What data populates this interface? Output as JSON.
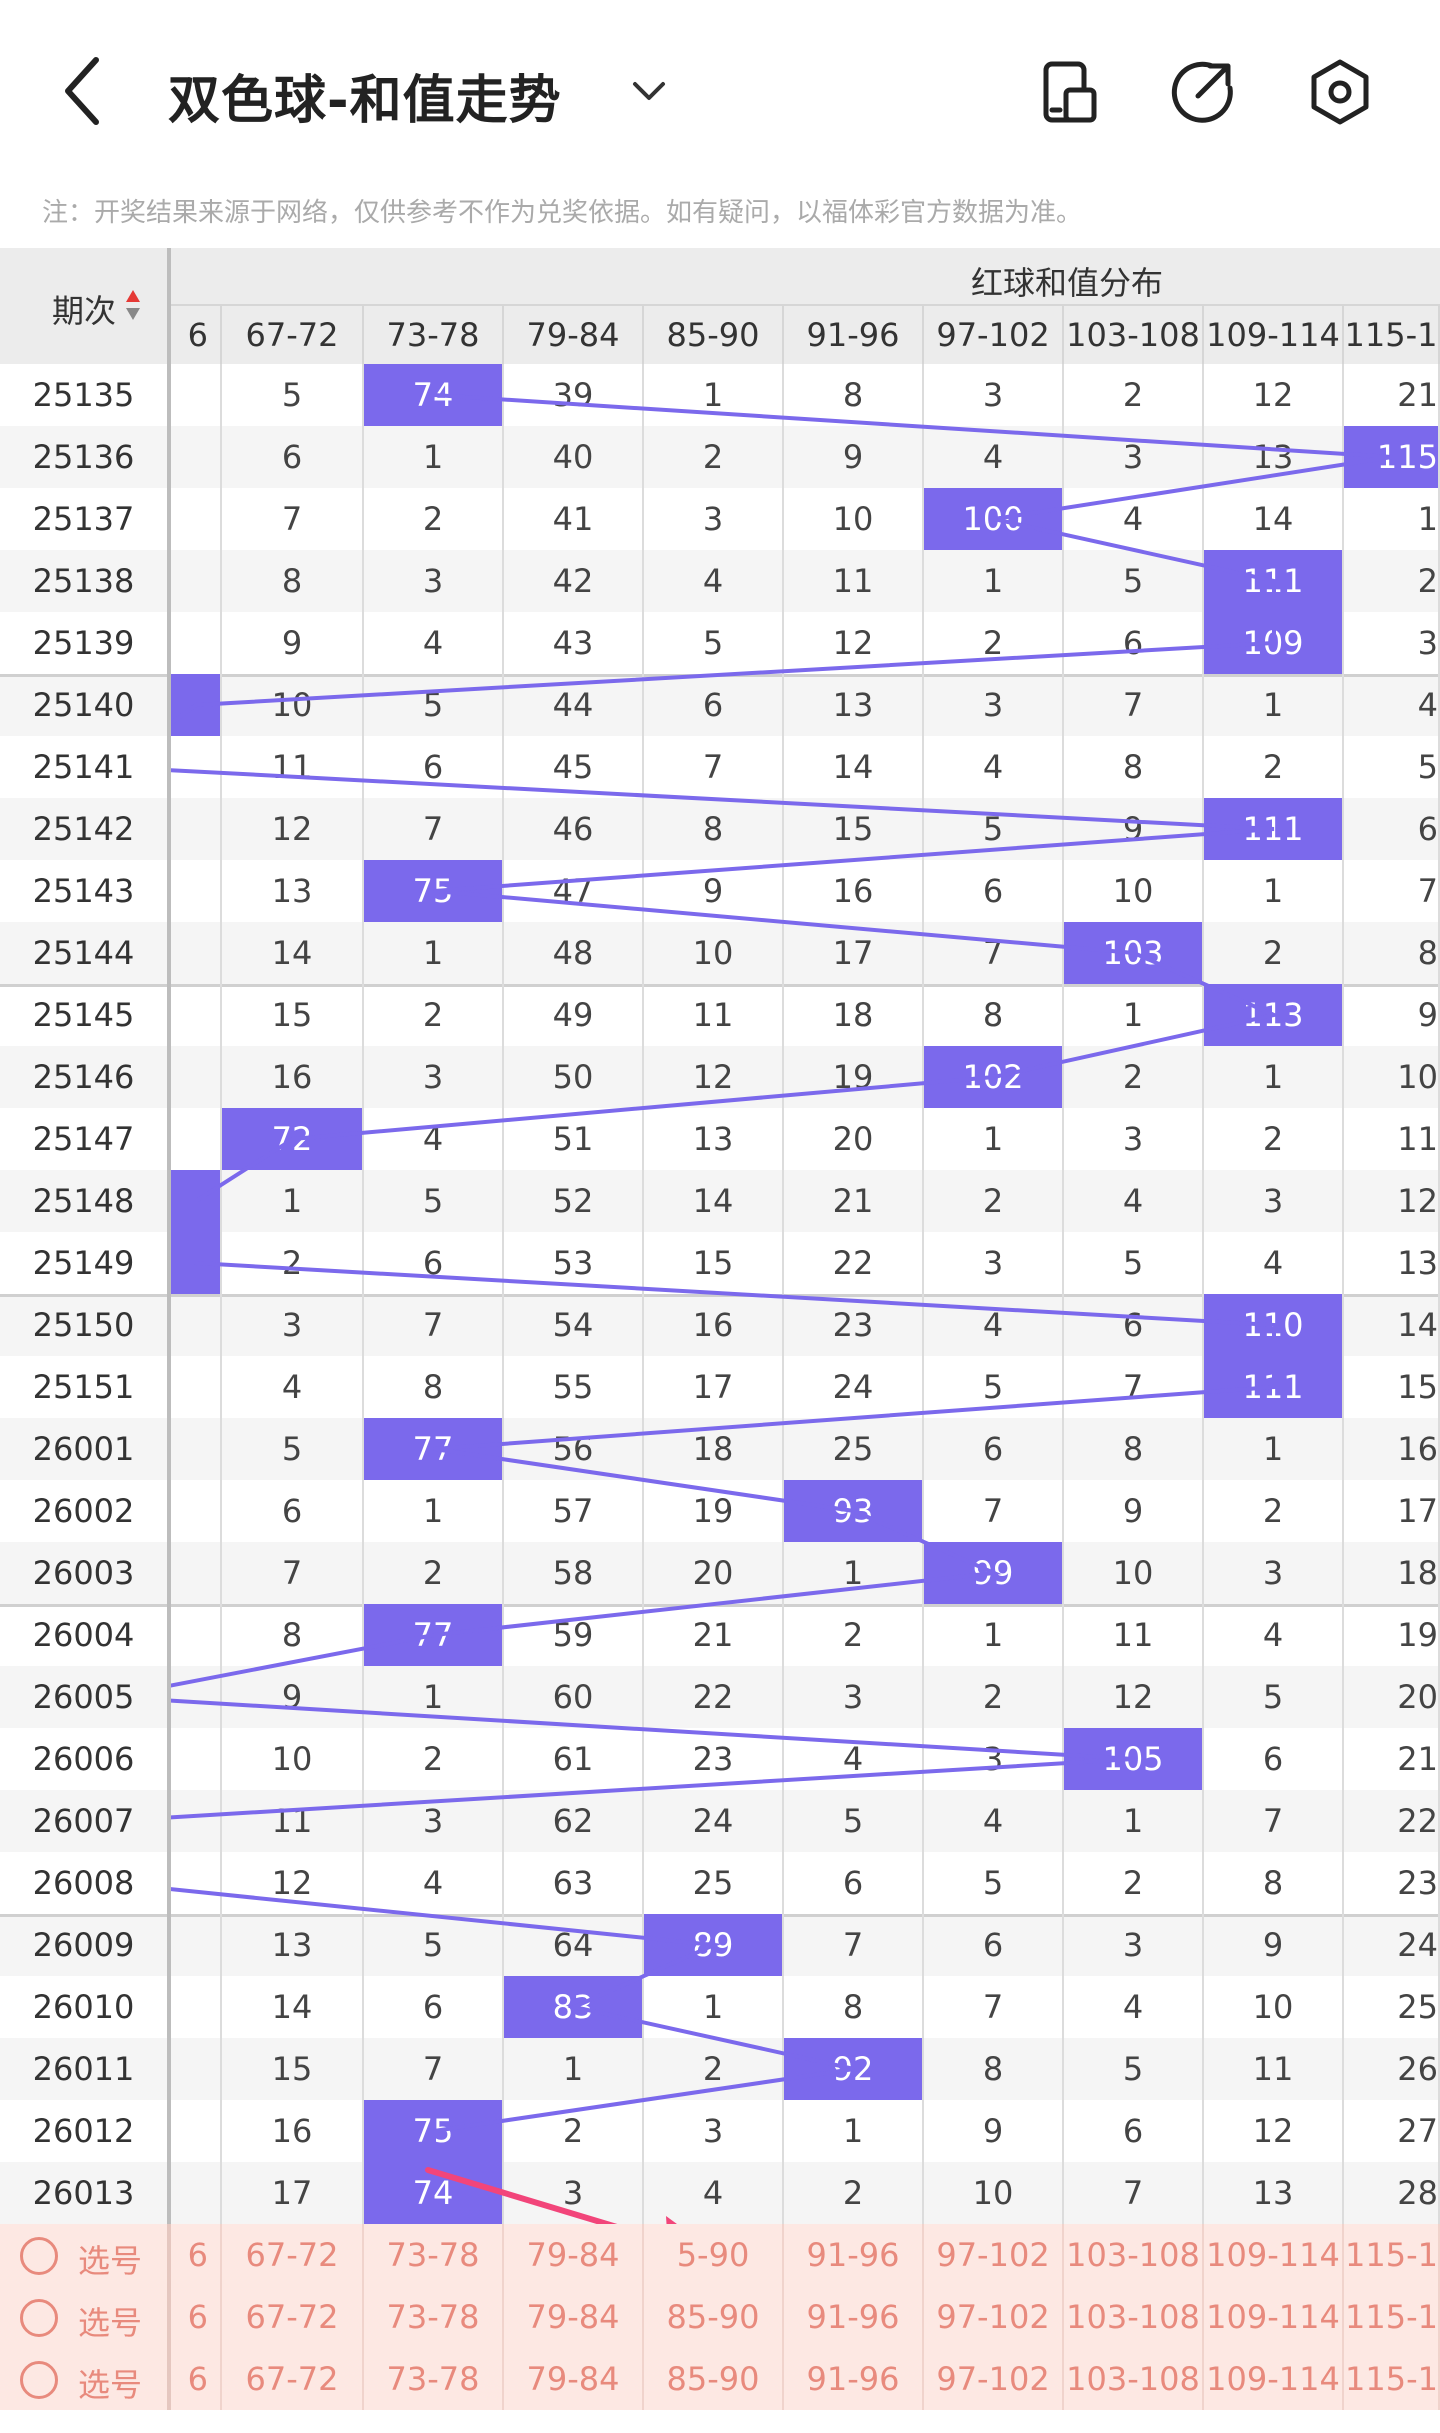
{
  "header": {
    "title": "双色球-和值走势",
    "icons": [
      "back-chevron-icon",
      "title-dropdown-icon",
      "device-icon",
      "share-icon",
      "settings-icon"
    ]
  },
  "notice": "注：开奖结果来源于网络，仅供参考不作为兑奖依据。如有疑问，以福体彩官方数据为准。",
  "table": {
    "period_header": "期次",
    "group_header": "红球和值分布",
    "columns": [
      "6",
      "67-72",
      "73-78",
      "79-84",
      "85-90",
      "91-96",
      "97-102",
      "103-108",
      "109-114",
      "115-1"
    ],
    "rows": [
      {
        "period": "25135",
        "cells": [
          "",
          "5",
          "74",
          "39",
          "1",
          "8",
          "3",
          "2",
          "12",
          "21"
        ],
        "hit": 2
      },
      {
        "period": "25136",
        "cells": [
          "",
          "6",
          "1",
          "40",
          "2",
          "9",
          "4",
          "3",
          "13",
          "115"
        ],
        "hit": 9
      },
      {
        "period": "25137",
        "cells": [
          "",
          "7",
          "2",
          "41",
          "3",
          "10",
          "100",
          "4",
          "14",
          "1"
        ],
        "hit": 6
      },
      {
        "period": "25138",
        "cells": [
          "",
          "8",
          "3",
          "42",
          "4",
          "11",
          "1",
          "5",
          "111",
          "2"
        ],
        "hit": 8
      },
      {
        "period": "25139",
        "cells": [
          "",
          "9",
          "4",
          "43",
          "5",
          "12",
          "2",
          "6",
          "109",
          "3"
        ],
        "hit": 8
      },
      {
        "period": "25140",
        "cells": [
          "",
          "10",
          "5",
          "44",
          "6",
          "13",
          "3",
          "7",
          "1",
          "4"
        ],
        "hit": 0
      },
      {
        "period": "25141",
        "cells": [
          "",
          "11",
          "6",
          "45",
          "7",
          "14",
          "4",
          "8",
          "2",
          "5"
        ],
        "hit": -1
      },
      {
        "period": "25142",
        "cells": [
          "",
          "12",
          "7",
          "46",
          "8",
          "15",
          "5",
          "9",
          "111",
          "6"
        ],
        "hit": 8
      },
      {
        "period": "25143",
        "cells": [
          "",
          "13",
          "75",
          "47",
          "9",
          "16",
          "6",
          "10",
          "1",
          "7"
        ],
        "hit": 2
      },
      {
        "period": "25144",
        "cells": [
          "",
          "14",
          "1",
          "48",
          "10",
          "17",
          "7",
          "103",
          "2",
          "8"
        ],
        "hit": 7
      },
      {
        "period": "25145",
        "cells": [
          "",
          "15",
          "2",
          "49",
          "11",
          "18",
          "8",
          "1",
          "113",
          "9"
        ],
        "hit": 8
      },
      {
        "period": "25146",
        "cells": [
          "",
          "16",
          "3",
          "50",
          "12",
          "19",
          "102",
          "2",
          "1",
          "10"
        ],
        "hit": 6
      },
      {
        "period": "25147",
        "cells": [
          "",
          "72",
          "4",
          "51",
          "13",
          "20",
          "1",
          "3",
          "2",
          "11"
        ],
        "hit": 1
      },
      {
        "period": "25148",
        "cells": [
          "",
          "1",
          "5",
          "52",
          "14",
          "21",
          "2",
          "4",
          "3",
          "12"
        ],
        "hit": 0
      },
      {
        "period": "25149",
        "cells": [
          "",
          "2",
          "6",
          "53",
          "15",
          "22",
          "3",
          "5",
          "4",
          "13"
        ],
        "hit": 0
      },
      {
        "period": "25150",
        "cells": [
          "",
          "3",
          "7",
          "54",
          "16",
          "23",
          "4",
          "6",
          "110",
          "14"
        ],
        "hit": 8
      },
      {
        "period": "25151",
        "cells": [
          "",
          "4",
          "8",
          "55",
          "17",
          "24",
          "5",
          "7",
          "111",
          "15"
        ],
        "hit": 8
      },
      {
        "period": "26001",
        "cells": [
          "",
          "5",
          "77",
          "56",
          "18",
          "25",
          "6",
          "8",
          "1",
          "16"
        ],
        "hit": 2
      },
      {
        "period": "26002",
        "cells": [
          "",
          "6",
          "1",
          "57",
          "19",
          "93",
          "7",
          "9",
          "2",
          "17"
        ],
        "hit": 5
      },
      {
        "period": "26003",
        "cells": [
          "",
          "7",
          "2",
          "58",
          "20",
          "1",
          "99",
          "10",
          "3",
          "18"
        ],
        "hit": 6
      },
      {
        "period": "26004",
        "cells": [
          "",
          "8",
          "77",
          "59",
          "21",
          "2",
          "1",
          "11",
          "4",
          "19"
        ],
        "hit": 2
      },
      {
        "period": "26005",
        "cells": [
          "",
          "9",
          "1",
          "60",
          "22",
          "3",
          "2",
          "12",
          "5",
          "20"
        ],
        "hit": -1
      },
      {
        "period": "26006",
        "cells": [
          "",
          "10",
          "2",
          "61",
          "23",
          "4",
          "3",
          "105",
          "6",
          "21"
        ],
        "hit": 7
      },
      {
        "period": "26007",
        "cells": [
          "",
          "11",
          "3",
          "62",
          "24",
          "5",
          "4",
          "1",
          "7",
          "22"
        ],
        "hit": -1
      },
      {
        "period": "26008",
        "cells": [
          "",
          "12",
          "4",
          "63",
          "25",
          "6",
          "5",
          "2",
          "8",
          "23"
        ],
        "hit": -1
      },
      {
        "period": "26009",
        "cells": [
          "",
          "13",
          "5",
          "64",
          "89",
          "7",
          "6",
          "3",
          "9",
          "24"
        ],
        "hit": 4
      },
      {
        "period": "26010",
        "cells": [
          "",
          "14",
          "6",
          "83",
          "1",
          "8",
          "7",
          "4",
          "10",
          "25"
        ],
        "hit": 3
      },
      {
        "period": "26011",
        "cells": [
          "",
          "15",
          "7",
          "1",
          "2",
          "92",
          "8",
          "5",
          "11",
          "26"
        ],
        "hit": 5
      },
      {
        "period": "26012",
        "cells": [
          "",
          "16",
          "75",
          "2",
          "3",
          "1",
          "9",
          "6",
          "12",
          "27"
        ],
        "hit": 2
      },
      {
        "period": "26013",
        "cells": [
          "",
          "17",
          "74",
          "3",
          "4",
          "2",
          "10",
          "7",
          "13",
          "28"
        ],
        "hit": 2
      }
    ]
  },
  "pick_rows": [
    {
      "label": "选号",
      "cells": [
        "6",
        "67-72",
        "73-78",
        "79-84",
        "5-90",
        "91-96",
        "97-102",
        "103-108",
        "109-114",
        "115-1"
      ]
    },
    {
      "label": "选号",
      "cells": [
        "6",
        "67-72",
        "73-78",
        "79-84",
        "85-90",
        "91-96",
        "97-102",
        "103-108",
        "109-114",
        "115-1"
      ]
    },
    {
      "label": "选号",
      "cells": [
        "6",
        "67-72",
        "73-78",
        "79-84",
        "85-90",
        "91-96",
        "97-102",
        "103-108",
        "109-114",
        "115-1"
      ]
    }
  ],
  "colors": {
    "accent": "#7b69ec",
    "pick": "#e88a7d",
    "arrow": "#f2457a"
  }
}
